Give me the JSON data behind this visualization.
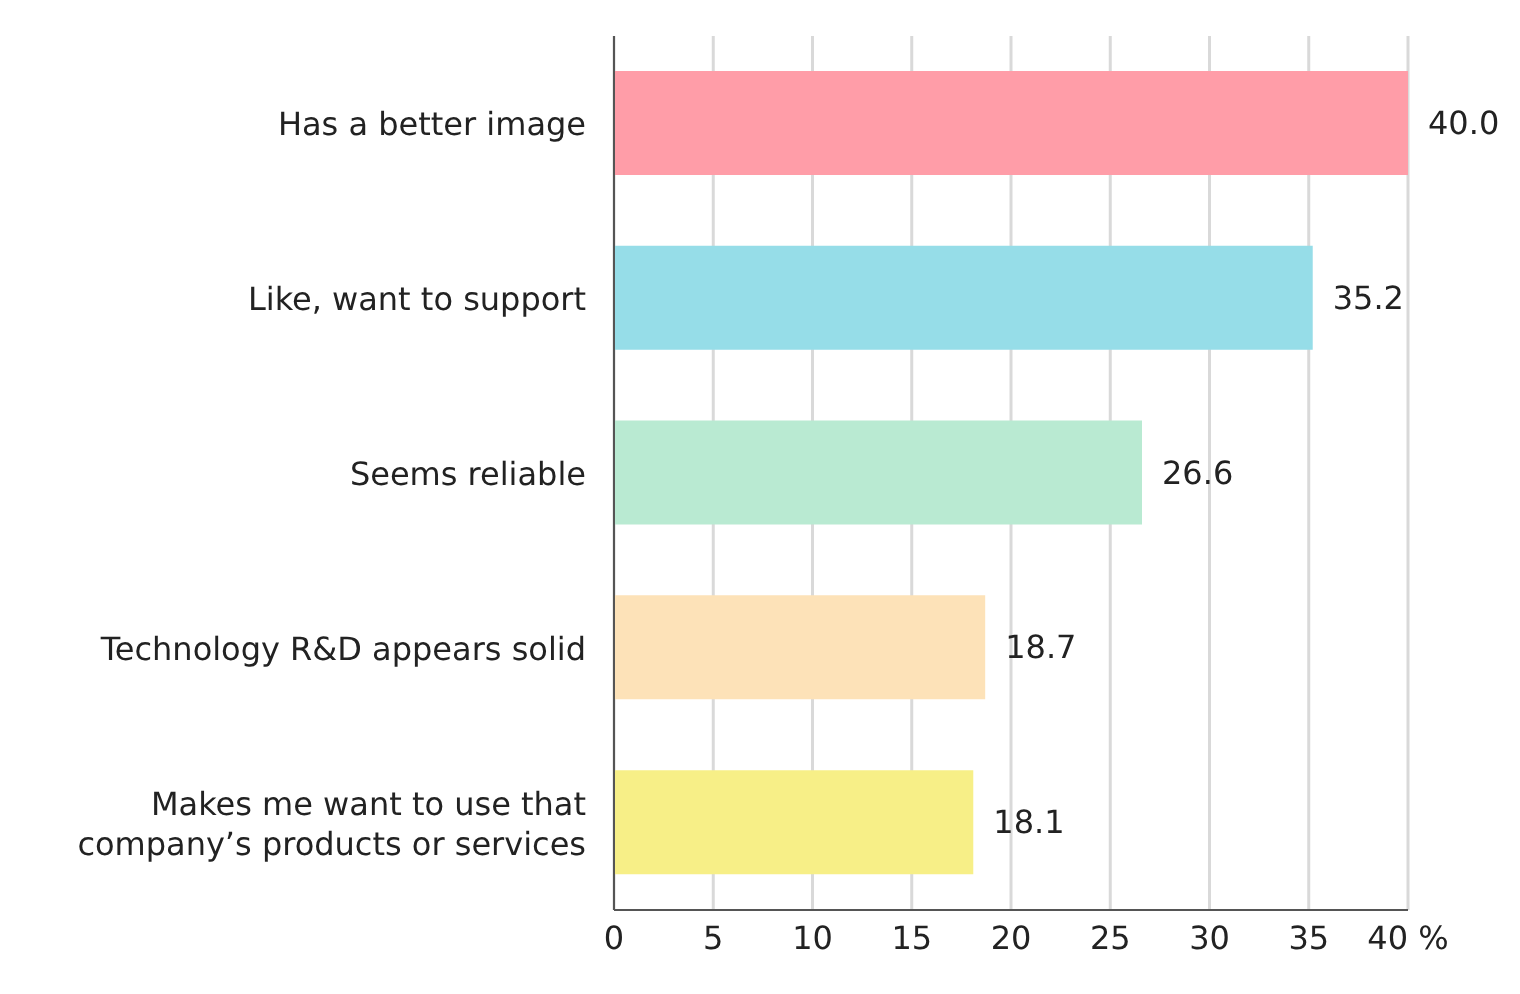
{
  "chart_data": {
    "type": "bar",
    "orientation": "horizontal",
    "categories": [
      "Has a better image",
      "Like, want to support",
      "Seems reliable",
      "Technology R&D appears solid",
      "Makes me want to use that company’s products or services"
    ],
    "values": [
      40.0,
      35.2,
      26.6,
      18.7,
      18.1
    ],
    "colors": [
      "#ff9da8",
      "#96dde8",
      "#b9ead2",
      "#fde2b8",
      "#f7ef87"
    ],
    "value_labels": [
      "40.0",
      "35.2",
      "26.6",
      "18.7",
      "18.1"
    ],
    "xlim": [
      0,
      40
    ],
    "xticks": [
      0,
      5,
      10,
      15,
      20,
      25,
      30,
      35,
      {
        "value": 40,
        "label": "40 %"
      }
    ],
    "grid": "x"
  }
}
